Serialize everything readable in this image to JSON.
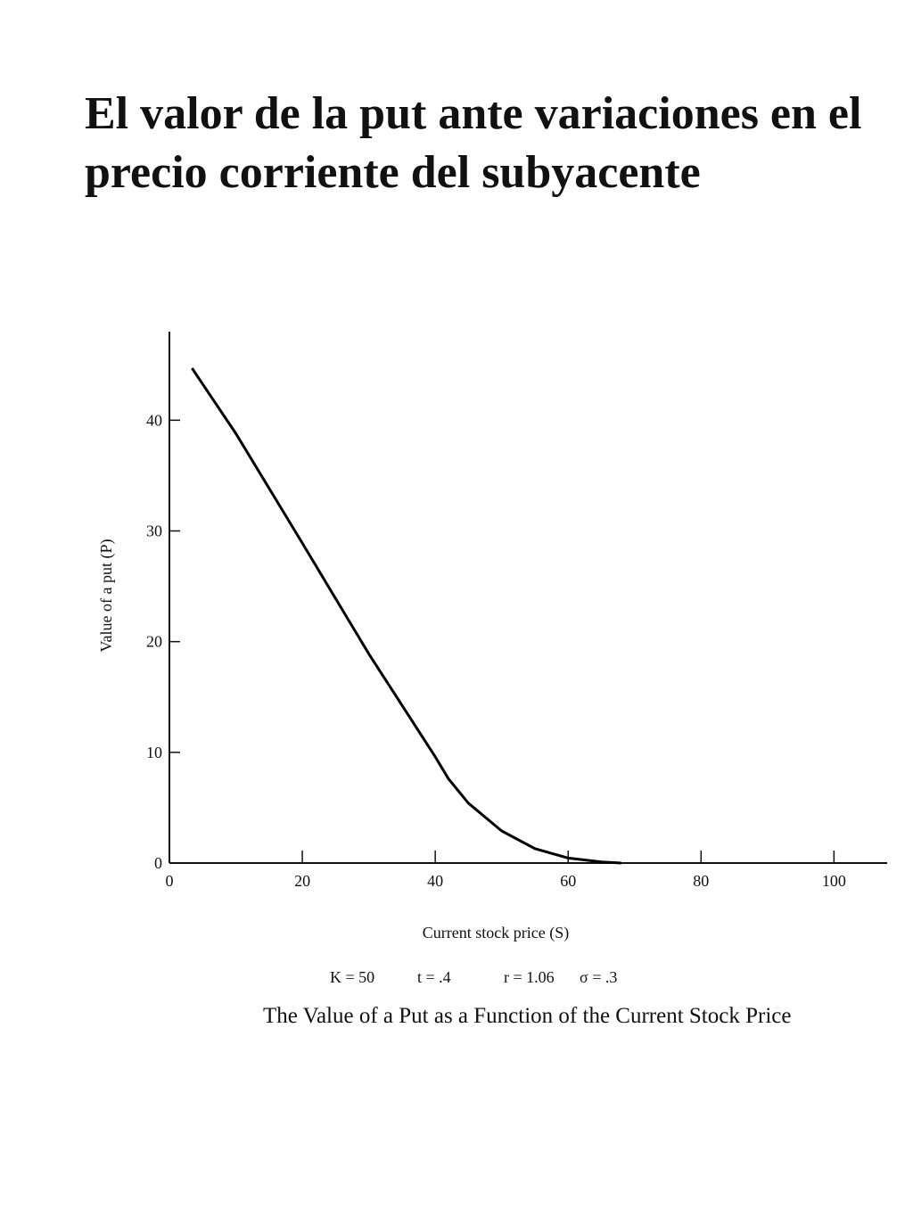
{
  "chart_data": {
    "type": "line",
    "title": "El valor de la put ante variaciones en el precio corriente del subyacente",
    "x_label": "Current stock price (S)",
    "y_label": "Value of a put (P)",
    "parameters": [
      "K = 50",
      "t = .4",
      "r = 1.06",
      "σ = .3"
    ],
    "caption": "The Value of a Put as a Function of the Current Stock Price",
    "x": [
      3.4,
      10,
      20,
      30,
      40,
      42,
      45,
      50,
      55,
      60,
      65,
      68
    ],
    "values": [
      44.7,
      38.8,
      28.9,
      18.9,
      9.6,
      7.6,
      5.4,
      2.9,
      1.3,
      0.45,
      0.1,
      0
    ],
    "color": "#000000",
    "xlim": [
      0,
      108
    ],
    "ylim": [
      0,
      48
    ],
    "xticks": [
      0,
      20,
      40,
      60,
      80,
      100
    ],
    "yticks": [
      0,
      10,
      20,
      30,
      40
    ]
  }
}
